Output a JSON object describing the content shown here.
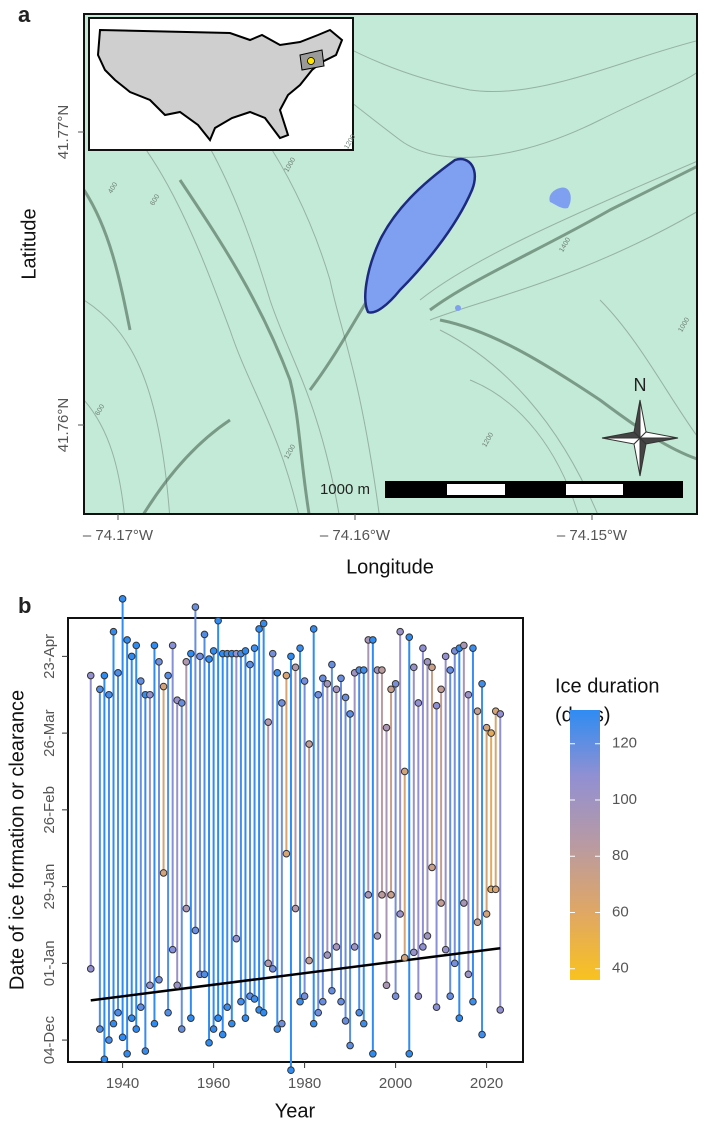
{
  "map": {
    "panel_label": "a",
    "xlabel": "Longitude",
    "ylabel": "Latitude",
    "xticks": [
      "– 74.17°W",
      "– 74.16°W",
      "– 74.15°W"
    ],
    "yticks": [
      "41.77°N",
      "41.76°N"
    ],
    "scale_label": "1000 m",
    "north_label": "N",
    "contour_labels": [
      "400",
      "600",
      "1000",
      "1200",
      "1400",
      "1200",
      "1200",
      "600",
      "1000"
    ]
  },
  "chart_data": {
    "type": "segment",
    "panel_label": "b",
    "xlabel": "Year",
    "ylabel": "Date of ice formation or clearance",
    "colorbar_title": [
      "Ice duration",
      "(days)"
    ],
    "x": [
      1933,
      1935,
      1936,
      1937,
      1938,
      1939,
      1940,
      1941,
      1942,
      1943,
      1944,
      1945,
      1946,
      1947,
      1948,
      1949,
      1950,
      1951,
      1952,
      1953,
      1954,
      1955,
      1956,
      1957,
      1958,
      1959,
      1960,
      1961,
      1962,
      1963,
      1964,
      1965,
      1966,
      1967,
      1968,
      1969,
      1970,
      1971,
      1972,
      1973,
      1974,
      1975,
      1976,
      1977,
      1978,
      1979,
      1980,
      1981,
      1982,
      1983,
      1984,
      1985,
      1986,
      1987,
      1988,
      1989,
      1990,
      1991,
      1992,
      1993,
      1994,
      1995,
      1996,
      1997,
      1998,
      1999,
      2000,
      2001,
      2002,
      2003,
      2004,
      2005,
      2006,
      2007,
      2008,
      2009,
      2010,
      2011,
      2012,
      2013,
      2014,
      2015,
      2016,
      2017,
      2018,
      2019,
      2020,
      2021,
      2022,
      2023
    ],
    "formation": [
      -2,
      -24,
      -35,
      -28,
      -22,
      -18,
      -27,
      -33,
      -20,
      -24,
      -16,
      -32,
      -8,
      -22,
      -6,
      33,
      -18,
      5,
      -8,
      -24,
      20,
      -20,
      12,
      -4,
      -4,
      -29,
      -24,
      -20,
      -26,
      -16,
      -22,
      9,
      -14,
      -20,
      -12,
      -13,
      -17,
      -18,
      0,
      -2,
      -24,
      -22,
      40,
      -39,
      20,
      -14,
      -12,
      1,
      -22,
      -18,
      -14,
      3,
      -10,
      6,
      -14,
      -21,
      -30,
      6,
      -18,
      -22,
      25,
      -33,
      10,
      25,
      -8,
      25,
      -12,
      18,
      2,
      -33,
      4,
      -12,
      6,
      10,
      35,
      -16,
      22,
      5,
      -12,
      0,
      -20,
      22,
      -4,
      -14,
      15,
      -26,
      18,
      27,
      27,
      -17
    ],
    "clearance": [
      105,
      100,
      105,
      98,
      121,
      106,
      133,
      118,
      112,
      116,
      103,
      98,
      98,
      116,
      110,
      101,
      105,
      116,
      96,
      95,
      110,
      113,
      130,
      112,
      120,
      111,
      114,
      125,
      113,
      113,
      113,
      113,
      113,
      114,
      109,
      115,
      122,
      124,
      88,
      113,
      106,
      95,
      105,
      112,
      108,
      115,
      103,
      80,
      122,
      98,
      104,
      102,
      109,
      100,
      104,
      97,
      91,
      106,
      107,
      107,
      118,
      118,
      107,
      107,
      86,
      100,
      102,
      121,
      70,
      119,
      108,
      95,
      115,
      110,
      108,
      94,
      100,
      112,
      107,
      114,
      115,
      116,
      98,
      115,
      92,
      102,
      86,
      84,
      92,
      91
    ],
    "trend": {
      "x": [
        1933,
        2023
      ],
      "values": [
        -13.5,
        5.5
      ]
    },
    "xlim": [
      1928,
      2028
    ],
    "xticks": [
      1940,
      1960,
      1980,
      2000,
      2020
    ],
    "ylim": [
      -36,
      126
    ],
    "yticks": [
      {
        "value": -28,
        "label": "04-Dec"
      },
      {
        "value": 0,
        "label": "01-Jan"
      },
      {
        "value": 28,
        "label": "29-Jan"
      },
      {
        "value": 56,
        "label": "26-Feb"
      },
      {
        "value": 84,
        "label": "26-Mar"
      },
      {
        "value": 112,
        "label": "23-Apr"
      }
    ],
    "clim": [
      36,
      132
    ],
    "cticks": [
      40,
      60,
      80,
      100,
      120
    ],
    "colors": [
      "#f9c21f",
      "#e0a764",
      "#b99aa2",
      "#9290d2",
      "#2f8cf2"
    ],
    "trend_color": "#000000"
  }
}
